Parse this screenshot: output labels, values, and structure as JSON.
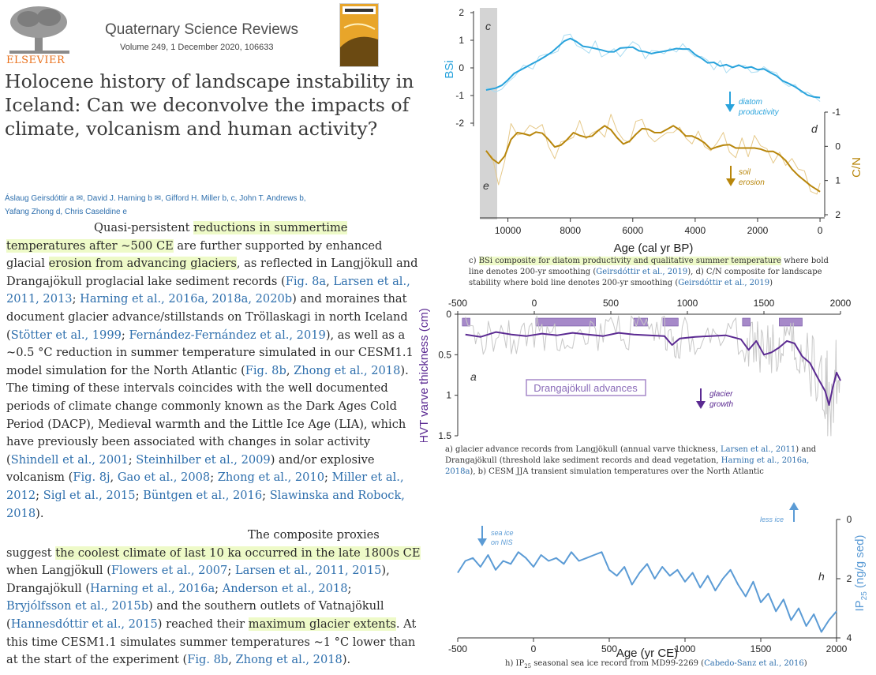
{
  "journal": {
    "publisher": "ELSEVIER",
    "name": "Quaternary Science Reviews",
    "volume": "Volume 249, 1 December 2020, 106633"
  },
  "article": {
    "title": "Holocene history of landscape instability in Iceland: Can we deconvolve the impacts of climate, volcanism and human activity?",
    "authors_line1": "Áslaug Geirsdóttir a ✉, David J. Harning b ✉, Gifford H. Miller b, c, John T. Andrews b,",
    "authors_line2": "Yafang Zhong d, Chris Caseldine e"
  },
  "body1": {
    "l1a": "Quasi-persistent ",
    "l1b": "reductions in summertime",
    "l2a": "temperatures after ~500 CE",
    "l2b": " are further supported by enhanced",
    "l3a": "glacial ",
    "l3b": "erosion from advancing glaciers",
    "l3c": ", as reflected in Langjökull and",
    "l4": "Drangajökull proglacial lake sediment records (",
    "l4r1": "Fig. 8a",
    "l4s": ", ",
    "l4r2": "Larsen et al.,",
    "l5r1": "2011, 2013",
    "l5s1": "; ",
    "l5r2": "Harning et al., 2016a, 2018a, 2020b",
    "l5t": ") and moraines that",
    "l6": "document glacier advance/stillstands on Tröllaskagi in north Iceland",
    "l7a": "(",
    "l7r1": "Stötter et al., 1999",
    "l7s": "; ",
    "l7r2": "Fernández-Fernández et al., 2019",
    "l7t": "), as well as a",
    "l8": "~0.5 °C reduction in summer temperature simulated in our CESM1.1",
    "l9a": "model simulation for the North Atlantic (",
    "l9r1": "Fig. 8b",
    "l9s": ", ",
    "l9r2": "Zhong et al., 2018",
    "l9t": ").",
    "l10": "The timing of these intervals coincides with the well documented",
    "l11": "periods of climate change commonly known as the Dark Ages Cold",
    "l12": "Period (DACP), Medieval warmth and the Little Ice Age (LIA), which",
    "l13": "have previously been associated with changes in solar activity",
    "l14a": "(",
    "l14r1": "Shindell et al., 2001",
    "l14s": "; ",
    "l14r2": "Steinhilber et al., 2009",
    "l14t": ") and/or explosive",
    "l15a": "volcanism (",
    "l15r1": "Fig. 8j",
    "l15s1": ", ",
    "l15r2": "Gao et al., 2008",
    "l15s2": "; ",
    "l15r3": "Zhong et al., 2010",
    "l15s3": "; ",
    "l15r4": "Miller et al.,",
    "l16r1": "2012",
    "l16s1": "; ",
    "l16r2": "Sigl et al., 2015",
    "l16s2": "; ",
    "l16r3": "Büntgen et al., 2016",
    "l16s3": "; ",
    "l16r4": "Slawinska and Robock,",
    "l17r1": "2018",
    "l17t": ")."
  },
  "body2": {
    "l1": "The composite proxies",
    "l2a": "suggest ",
    "l2b": "the coolest climate of last 10 ka occurred in the late 1800s CE",
    "l3a": "when Langjökull (",
    "l3r1": "Flowers et al., 2007",
    "l3s": "; ",
    "l3r2": "Larsen et al., 2011, 2015",
    "l3t": "),",
    "l4a": "Drangajökull (",
    "l4r1": "Harning et al., 2016a",
    "l4s": "; ",
    "l4r2": "Anderson et al., 2018",
    "l4t": ";",
    "l5r1": "Bryjólfsson et al., 2015b",
    "l5t": ") and the southern outlets of Vatnajökull",
    "l6a": "(",
    "l6r1": "Hannesdóttir et al., 2015",
    "l6t": ") reached their ",
    "l6b": "maximum glacier extents",
    "l6c": ". At",
    "l7": "this time CESM1.1 simulates summer temperatures ~1 °C lower than",
    "l8a": "at the start of the experiment (",
    "l8r1": "Fig. 8b",
    "l8s": ", ",
    "l8r2": "Zhong et al., 2018",
    "l8t": ")."
  },
  "captions": {
    "c1a": "c) ",
    "c1b": "BSi composite for diatom productivity and qualitative summer temperature",
    "c1c": " where bold line denotes 200-yr smoothing (",
    "c1r1": "Geirsdóttir et al., 2019",
    "c1d": "), d) C/N composite for landscape stability where bold line denotes 200-yr smoothing (",
    "c1r2": "Geirsdóttir et al., 2019",
    "c1e": ")",
    "c2a": "a) glacier advance records from Langjökull (annual varve thickness, ",
    "c2r1": "Larsen et al., 2011",
    "c2b": ") and Drangajökull (threshold lake sediment records and dead vegetation, ",
    "c2r2": "Harning et al., 2016a, 2018a",
    "c2c": "), b) CESM JJA transient simulation temperatures over the North Atlantic",
    "c3a": "h) IP",
    "c3sub": "25",
    "c3b": " seasonal sea ice record from MD99-2269 (",
    "c3r1": "Cabedo-Sanz et al., 2016",
    "c3c": ")"
  },
  "colors": {
    "bsi": "#29a3dc",
    "cn": "#b8860b",
    "varve": "#5b2a92",
    "advance_bar": "#a689c9",
    "ip25": "#5b9bd5",
    "gray": "#c8c8c8",
    "highlight": "#eefac8"
  },
  "chart_data": [
    {
      "type": "line",
      "panel": "c",
      "ylabel": "BSi",
      "xlabel": "Age (cal yr BP)",
      "x_ticks": [
        "10000",
        "8000",
        "6000",
        "4000",
        "2000",
        "0"
      ],
      "y_ticks": [
        "2",
        "1",
        "0",
        "-1",
        "-2"
      ],
      "xlim": [
        10900,
        -150
      ],
      "ylim": [
        -2,
        2
      ],
      "annotation": "diatom productivity",
      "series": [
        {
          "x": [
            10700,
            10400,
            10200,
            10000,
            9800,
            9500,
            9200,
            9000,
            8800,
            8600,
            8400,
            8200,
            8000,
            7800,
            7600,
            7400,
            7200,
            7000,
            6800,
            6600,
            6400,
            6200,
            6000,
            5800,
            5600,
            5400,
            5200,
            5000,
            4800,
            4600,
            4400,
            4200,
            4000,
            3800,
            3600,
            3400,
            3200,
            3000,
            2800,
            2600,
            2400,
            2200,
            2000,
            1800,
            1600,
            1400,
            1200,
            1000,
            800,
            600,
            400,
            200,
            0
          ],
          "values": [
            -0.7,
            -0.9,
            -0.6,
            -0.4,
            -0.3,
            0.1,
            0.15,
            0.25,
            0.45,
            0.55,
            0.7,
            1.05,
            1.15,
            1.0,
            0.7,
            0.65,
            0.9,
            0.55,
            0.5,
            0.7,
            0.55,
            0.9,
            0.75,
            0.6,
            0.5,
            0.65,
            0.4,
            0.65,
            0.75,
            0.55,
            0.8,
            0.7,
            0.55,
            0.2,
            0.3,
            0.05,
            0.25,
            -0.1,
            0.2,
            -0.05,
            0.15,
            -0.1,
            0.05,
            -0.15,
            0.0,
            -0.35,
            -0.5,
            -0.55,
            -0.65,
            -0.85,
            -1.0,
            -1.1,
            -1.05
          ]
        }
      ]
    },
    {
      "type": "line",
      "panel": "d",
      "ylabel": "C/N",
      "y_ticks": [
        "-1",
        "0",
        "1",
        "2"
      ],
      "ylim": [
        -1,
        2
      ],
      "annotation": "soil erosion",
      "series": [
        {
          "x": [
            10700,
            10500,
            10300,
            10100,
            9900,
            9700,
            9500,
            9300,
            9100,
            8900,
            8700,
            8500,
            8300,
            8100,
            7900,
            7700,
            7500,
            7300,
            7100,
            6900,
            6700,
            6500,
            6300,
            6100,
            5900,
            5700,
            5500,
            5300,
            5100,
            4900,
            4700,
            4500,
            4300,
            4100,
            3900,
            3700,
            3500,
            3300,
            3100,
            2900,
            2700,
            2500,
            2300,
            2100,
            1900,
            1700,
            1500,
            1300,
            1100,
            900,
            700,
            500,
            300,
            100,
            0
          ],
          "values": [
            0.0,
            0.25,
            0.85,
            0.4,
            -0.4,
            -0.6,
            -0.2,
            -0.3,
            -0.45,
            -0.5,
            -0.2,
            0.1,
            0.15,
            -0.35,
            -0.4,
            -0.45,
            -0.1,
            -0.25,
            -0.55,
            -0.6,
            -0.65,
            -0.2,
            0.1,
            -0.1,
            -0.45,
            -0.5,
            -0.6,
            -0.4,
            -0.2,
            -0.6,
            -0.7,
            -0.5,
            -0.25,
            -0.15,
            -0.5,
            0.0,
            0.2,
            0.05,
            -0.2,
            0.05,
            0.0,
            0.1,
            0.05,
            0.0,
            0.1,
            0.15,
            0.2,
            0.1,
            0.45,
            0.7,
            0.85,
            1.0,
            1.15,
            1.3,
            1.35
          ]
        }
      ]
    },
    {
      "type": "line",
      "panel": "a",
      "ylabel": "HVT varve thickness (cm)",
      "x_ticks": [
        "-500",
        "0",
        "500",
        "1000",
        "1500",
        "2000"
      ],
      "y_ticks": [
        "0",
        "0.5",
        "1",
        "1.5"
      ],
      "xlim": [
        -500,
        2000
      ],
      "ylim": [
        1.5,
        0
      ],
      "annotation": "glacier growth",
      "legend_box": "Drangajökull advances",
      "advance_intervals": [
        [
          -470,
          -420
        ],
        [
          10,
          400
        ],
        [
          650,
          740
        ],
        [
          840,
          940
        ],
        [
          1360,
          1410
        ],
        [
          1600,
          1750
        ]
      ],
      "series": [
        {
          "x": [
            -450,
            -350,
            -250,
            -150,
            -50,
            50,
            150,
            250,
            350,
            450,
            550,
            650,
            750,
            850,
            900,
            950,
            1050,
            1150,
            1250,
            1350,
            1400,
            1450,
            1500,
            1550,
            1600,
            1650,
            1700,
            1750,
            1800,
            1850,
            1900,
            1925,
            1950,
            1975,
            2000
          ],
          "values": [
            0.25,
            0.28,
            0.22,
            0.25,
            0.27,
            0.24,
            0.26,
            0.23,
            0.25,
            0.27,
            0.23,
            0.25,
            0.26,
            0.27,
            0.38,
            0.3,
            0.28,
            0.27,
            0.26,
            0.31,
            0.44,
            0.33,
            0.5,
            0.47,
            0.41,
            0.33,
            0.36,
            0.52,
            0.6,
            0.78,
            0.95,
            1.12,
            0.9,
            0.72,
            0.82
          ]
        }
      ]
    },
    {
      "type": "line",
      "panel": "h",
      "ylabel": "IP25 (ng/g sed)",
      "xlabel": "Age (yr CE)",
      "x_ticks": [
        "-500",
        "0",
        "500",
        "1000",
        "1500",
        "2000"
      ],
      "y_ticks": [
        "0",
        "2",
        "4"
      ],
      "xlim": [
        -500,
        2000
      ],
      "ylim": [
        4,
        0
      ],
      "annotations": [
        "sea ice on NIS",
        "less ice"
      ],
      "series": [
        {
          "x": [
            -500,
            -450,
            -400,
            -350,
            -300,
            -250,
            -200,
            -150,
            -100,
            -50,
            0,
            50,
            100,
            150,
            200,
            250,
            300,
            350,
            400,
            450,
            500,
            550,
            600,
            650,
            700,
            750,
            800,
            850,
            900,
            950,
            1000,
            1050,
            1100,
            1150,
            1200,
            1250,
            1300,
            1350,
            1400,
            1450,
            1500,
            1550,
            1600,
            1650,
            1700,
            1750,
            1800,
            1850,
            1900,
            1950,
            2000
          ],
          "values": [
            1.8,
            1.4,
            1.3,
            1.6,
            1.2,
            1.7,
            1.4,
            1.5,
            1.1,
            1.3,
            1.6,
            1.2,
            1.4,
            1.3,
            1.5,
            1.1,
            1.4,
            1.3,
            1.2,
            1.1,
            1.7,
            1.9,
            1.6,
            2.2,
            1.8,
            1.5,
            2.0,
            1.6,
            1.9,
            1.7,
            2.1,
            1.8,
            2.3,
            1.9,
            2.4,
            2.0,
            1.7,
            2.2,
            2.6,
            2.1,
            2.8,
            2.5,
            3.1,
            2.7,
            3.4,
            3.0,
            3.6,
            3.2,
            3.8,
            3.4,
            3.1
          ]
        }
      ]
    }
  ]
}
